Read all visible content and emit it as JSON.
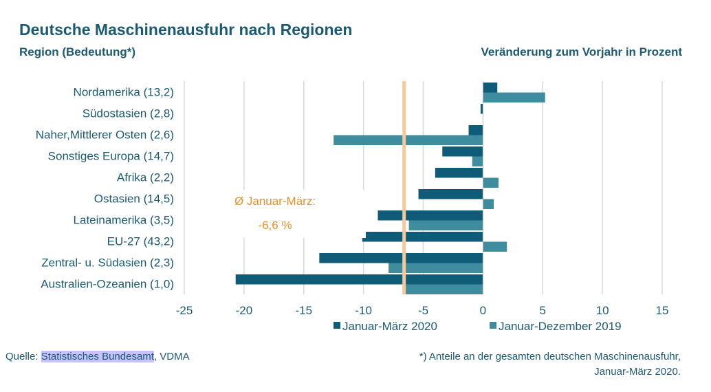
{
  "title": "Deutsche Maschinenausfuhr nach Regionen",
  "subtitle_left": "Region (Bedeutung*)",
  "subtitle_right": "Veränderung zum Vorjahr in Prozent",
  "source": {
    "prefix": "Quelle: ",
    "highlighted": "Statistisches Bundesamt",
    "suffix": ", VDMA"
  },
  "footnote": {
    "line1": "*) Anteile an der gesamten deutschen Maschinenausfuhr,",
    "line2": "Januar-März 2020."
  },
  "average": {
    "label_line1": "Ø Januar-März:",
    "label_line2": "-6,6 %",
    "value": -6.6,
    "color": "#f7c99a",
    "text_color": "#e8912a"
  },
  "chart_data": {
    "type": "bar",
    "orientation": "horizontal",
    "categories": [
      "Nordamerika (13,2)",
      "Südostasien (2,8)",
      "Naher,Mittlerer Osten (2,6)",
      "Sonstiges Europa (14,7)",
      "Afrika (2,2)",
      "Ostasien (14,5)",
      "Lateinamerika (3,5)",
      "EU-27 (43,2)",
      "Zentral- u. Südasien (2,3)",
      "Australien-Ozeanien (1,0)"
    ],
    "series": [
      {
        "name": "Januar-März 2020",
        "color": "#0e5c78",
        "values": [
          1.2,
          -0.2,
          -1.2,
          -3.4,
          -4.0,
          -5.4,
          -8.8,
          -10.1,
          -13.7,
          -20.7
        ]
      },
      {
        "name": "Januar-Dezember  2019",
        "color": "#3e8c9e",
        "values": [
          5.2,
          0.0,
          -12.5,
          -0.9,
          1.3,
          0.9,
          -6.2,
          2.0,
          -7.9,
          -6.6
        ]
      }
    ],
    "xlim": [
      -25,
      15
    ],
    "xticks": [
      "-25",
      "-20",
      "-15",
      "-10",
      "-5",
      "0",
      "5",
      "10",
      "15"
    ],
    "xtick_values": [
      -25,
      -20,
      -15,
      -10,
      -5,
      0,
      5,
      10,
      15
    ],
    "grid": "vertical",
    "legend": "bottom",
    "gridline_color": "#d9d9d9",
    "text_color": "#1b5a72"
  }
}
